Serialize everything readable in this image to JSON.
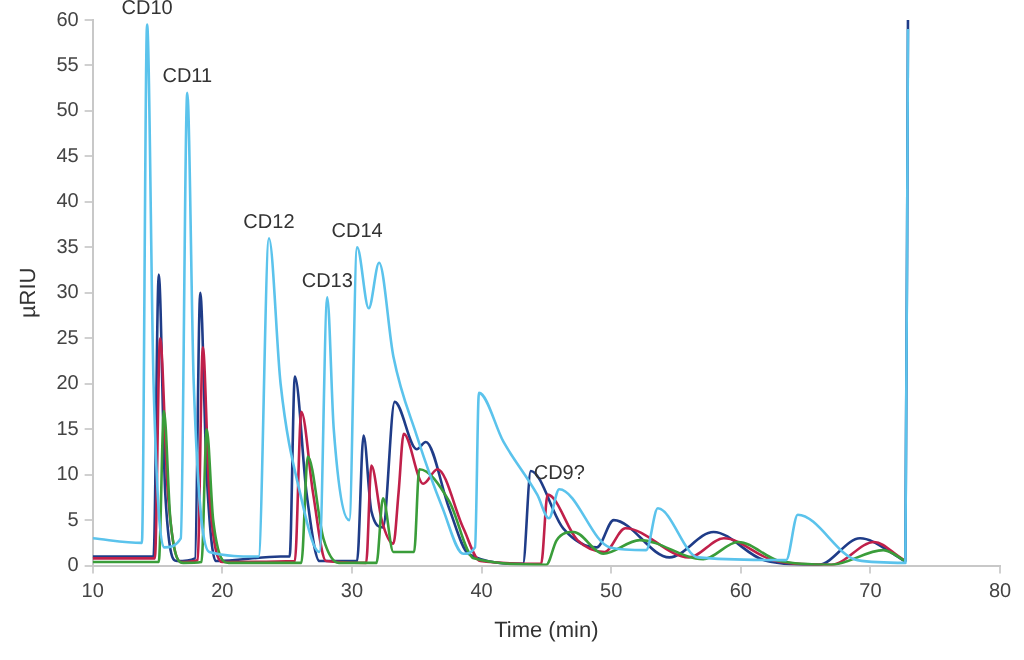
{
  "chart_data": {
    "type": "line",
    "xlabel": "Time (min)",
    "ylabel": "µRIU",
    "xlim": [
      10,
      80
    ],
    "xticks": [
      10,
      20,
      30,
      40,
      50,
      60,
      70,
      80
    ],
    "ylim": [
      0,
      60
    ],
    "yticks": [
      0,
      5,
      10,
      15,
      20,
      25,
      30,
      35,
      40,
      45,
      50,
      55,
      60
    ],
    "grid": false,
    "legend": false,
    "marker": "none",
    "line_style": "solid",
    "series": [
      {
        "color": "#5bc3ec",
        "x": [
          10,
          13.8,
          14.2,
          14.7,
          15.5,
          16.8,
          17.3,
          17.8,
          19,
          22.8,
          23.6,
          24.5,
          26,
          27.5,
          28.1,
          28.6,
          29.8,
          30.4,
          31.3,
          32.1,
          33.2,
          35,
          37,
          38.6,
          39.5,
          39.8,
          41.7,
          44.3,
          45.2,
          46,
          49.9,
          52.7,
          53.6,
          56.7,
          63.5,
          64.4,
          69,
          72.7,
          72.9
        ],
        "values": [
          3,
          2.5,
          59.5,
          20,
          2,
          3,
          52,
          20,
          1.5,
          1,
          36,
          20,
          8,
          1.5,
          29.5,
          15,
          5,
          35,
          28.3,
          33.3,
          23,
          14.3,
          6.3,
          1.3,
          2,
          19,
          13.6,
          7.8,
          5.2,
          8.4,
          2,
          1.7,
          6.3,
          0.9,
          0.6,
          5.6,
          0.6,
          0.3,
          59
        ]
      },
      {
        "color": "#3a9d3a",
        "x": [
          10,
          15.1,
          15.5,
          16,
          17,
          18.4,
          18.8,
          19.3,
          20.5,
          26.1,
          26.6,
          27.8,
          29,
          31.9,
          32.4,
          33.2,
          34.8,
          35.2,
          37.5,
          39.4,
          45,
          45.8,
          47.1,
          49.4,
          52.2,
          57.1,
          59.8,
          63,
          67,
          71,
          72.7
        ],
        "values": [
          0.4,
          0.4,
          17,
          5,
          0.3,
          0.4,
          15,
          5,
          0.3,
          0.3,
          12,
          3,
          0.3,
          0.3,
          7.4,
          1.5,
          1.5,
          10.6,
          7.1,
          0.8,
          0.1,
          2.8,
          3.7,
          1.3,
          2.8,
          0.7,
          2.6,
          0.5,
          0.1,
          1.7,
          0.5
        ]
      },
      {
        "color": "#c0204a",
        "x": [
          10,
          14.8,
          15.2,
          15.8,
          16.8,
          18.1,
          18.5,
          19,
          20,
          25.6,
          26.1,
          27,
          28,
          31.1,
          31.5,
          32.3,
          33.2,
          33.6,
          34,
          35.5,
          36.6,
          38.6,
          39.9,
          44.6,
          45.1,
          47.4,
          49.5,
          51.1,
          56,
          58.7,
          62.5,
          67,
          70.3,
          72.2,
          72.7
        ],
        "values": [
          0.8,
          0.8,
          25,
          8,
          0.4,
          0.6,
          24,
          8,
          0.4,
          0.5,
          16.9,
          8,
          0.5,
          0.3,
          11,
          5,
          2.4,
          8,
          14.5,
          9,
          10.6,
          4.1,
          0.5,
          0.2,
          7.8,
          2.8,
          1.5,
          4.1,
          0.9,
          3,
          0.6,
          0.1,
          2.6,
          1,
          0.5
        ]
      },
      {
        "color": "#1f3c88",
        "x": [
          10,
          14.7,
          15.1,
          15.6,
          16.5,
          17.9,
          18.3,
          18.8,
          19.5,
          24.5,
          25.2,
          25.6,
          26.5,
          27.5,
          30.4,
          30.9,
          31.5,
          32.4,
          33.3,
          35,
          35.7,
          37.5,
          39,
          43.2,
          43.8,
          46.3,
          48.9,
          50.2,
          54.5,
          57.9,
          61.8,
          66,
          69.2,
          72.1,
          72.7,
          72.9
        ],
        "values": [
          1,
          1,
          32,
          8,
          0.5,
          0.8,
          30,
          10,
          0.5,
          1,
          1,
          20.8,
          8,
          0.5,
          0.5,
          14.3,
          6,
          4.2,
          18,
          12.8,
          13.6,
          6.3,
          1.3,
          0.2,
          10.4,
          4.1,
          2,
          5,
          0.9,
          3.7,
          0.6,
          0.1,
          3,
          1,
          0.5,
          60
        ]
      }
    ],
    "annotations": [
      {
        "text": "CD10",
        "x": 14.2,
        "y": 59.5
      },
      {
        "text": "CD11",
        "x": 17.3,
        "y": 52
      },
      {
        "text": "CD12",
        "x": 23.6,
        "y": 36
      },
      {
        "text": "CD13",
        "x": 28.1,
        "y": 29.5
      },
      {
        "text": "CD14",
        "x": 30.4,
        "y": 35
      },
      {
        "text": "CD9?",
        "x": 46,
        "y": 8.4
      }
    ]
  }
}
